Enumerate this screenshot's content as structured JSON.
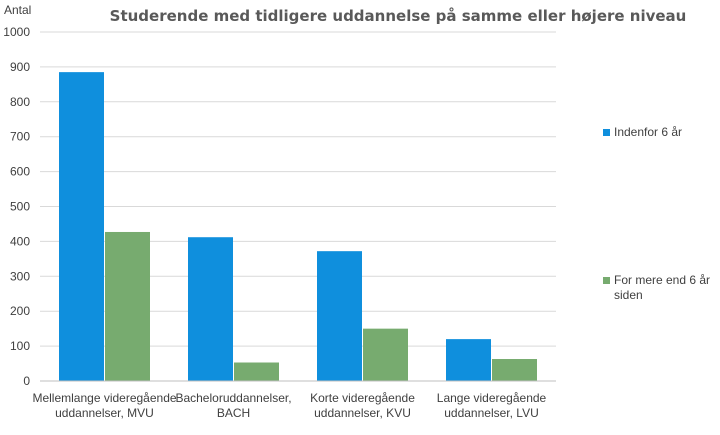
{
  "chart_data": {
    "type": "bar",
    "title": "Studerende med tidligere uddannelse på samme eller højere niveau",
    "ylabel": "Antal",
    "xlabel": "",
    "ylim": [
      0,
      1000
    ],
    "yticks": [
      0,
      100,
      200,
      300,
      400,
      500,
      600,
      700,
      800,
      900,
      1000
    ],
    "grid": true,
    "legend_position": "right",
    "categories": [
      [
        "Mellemlange videregående",
        "uddannelser, MVU"
      ],
      [
        "Bacheloruddannelser,",
        "BACH"
      ],
      [
        "Korte videregående",
        "uddannelser, KVU"
      ],
      [
        "Lange videregående",
        "uddannelser, LVU"
      ]
    ],
    "series": [
      {
        "name": "Indenfor 6 år",
        "color": "#0f8fdd",
        "values": [
          885,
          412,
          372,
          120
        ]
      },
      {
        "name": [
          "For mere end 6 år",
          "siden"
        ],
        "color": "#77ab6f",
        "values": [
          427,
          53,
          150,
          63
        ]
      }
    ]
  }
}
